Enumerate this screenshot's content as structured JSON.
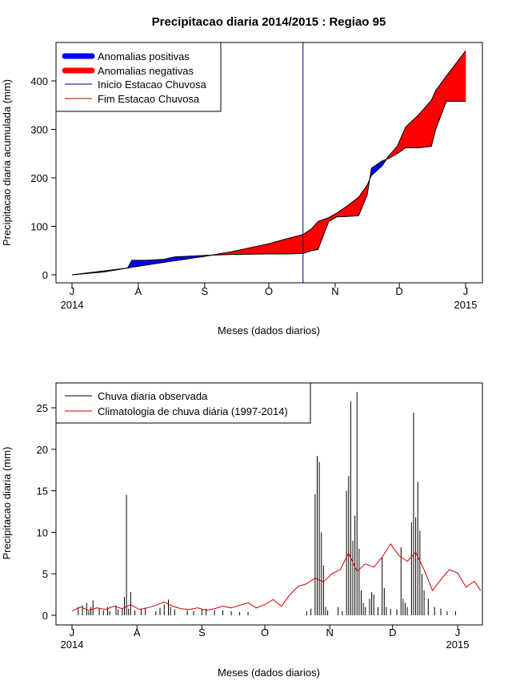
{
  "chart_data": [
    {
      "type": "area",
      "title": "Precipitacao diaria 2014/2015 : Regiao 95",
      "xlabel": "Meses (dados diarios)",
      "ylabel": "Precipitacao diaria acumulada (mm)",
      "ylim": [
        0,
        480
      ],
      "y_ticks": [
        0,
        100,
        200,
        300,
        400
      ],
      "month_ticks": [
        {
          "label": "J",
          "day": 0
        },
        {
          "label": "A",
          "day": 31
        },
        {
          "label": "S",
          "day": 62
        },
        {
          "label": "O",
          "day": 92
        },
        {
          "label": "N",
          "day": 123
        },
        {
          "label": "D",
          "day": 153
        },
        {
          "label": "J",
          "day": 184
        }
      ],
      "year_labels": [
        {
          "label": "2014",
          "day": 0
        },
        {
          "label": "2015",
          "day": 184
        }
      ],
      "x_range_days": [
        0,
        188
      ],
      "onset_day": 108,
      "observed_cumulative": {
        "days": [
          0,
          15,
          26,
          28,
          35,
          43,
          48,
          62,
          75,
          92,
          100,
          108,
          112,
          115,
          120,
          124,
          128,
          134,
          138,
          140,
          145,
          148,
          152,
          156,
          162,
          168,
          170,
          175,
          184
        ],
        "values": [
          0,
          8,
          14,
          30,
          30,
          32,
          37,
          40,
          42,
          43,
          43,
          44,
          50,
          52,
          110,
          120,
          120,
          122,
          165,
          220,
          235,
          240,
          250,
          262,
          262,
          265,
          300,
          358,
          358
        ]
      },
      "climatology_cumulative": {
        "days": [
          0,
          15,
          30,
          45,
          62,
          75,
          92,
          100,
          108,
          112,
          115,
          120,
          124,
          128,
          134,
          138,
          140,
          145,
          148,
          152,
          156,
          162,
          168,
          170,
          175,
          184
        ],
        "values": [
          0,
          6,
          17,
          27,
          38,
          48,
          64,
          74,
          83,
          95,
          110,
          118,
          128,
          140,
          160,
          185,
          205,
          225,
          245,
          265,
          305,
          330,
          360,
          380,
          410,
          462
        ]
      },
      "legend": [
        {
          "label": "Anomalias positivas",
          "color": "#0000ff"
        },
        {
          "label": "Anomalias negativas",
          "color": "#ff0000"
        },
        {
          "label": "Inicio Estacao Chuvosa",
          "color": "#00008b"
        },
        {
          "label": "Fim Estacao Chuvosa",
          "color": "#cc0000"
        }
      ],
      "legend_position": "top-left"
    },
    {
      "type": "bar",
      "title": "",
      "xlabel": "Meses (dados diarios)",
      "ylabel": "Precipitacao diaria (mm)",
      "ylim": [
        0,
        27
      ],
      "y_ticks": [
        0,
        5,
        10,
        15,
        20,
        25
      ],
      "month_ticks": [
        {
          "label": "J",
          "day": 0
        },
        {
          "label": "A",
          "day": 31
        },
        {
          "label": "S",
          "day": 62
        },
        {
          "label": "O",
          "day": 92
        },
        {
          "label": "N",
          "day": 123
        },
        {
          "label": "D",
          "day": 153
        },
        {
          "label": "J",
          "day": 184
        }
      ],
      "year_labels": [
        {
          "label": "2014",
          "day": 0
        },
        {
          "label": "2015",
          "day": 184
        }
      ],
      "x_range_days": [
        0,
        195
      ],
      "observed_daily": [
        {
          "day": 3,
          "value": 1.0
        },
        {
          "day": 5,
          "value": 1.2
        },
        {
          "day": 7,
          "value": 1.5
        },
        {
          "day": 8,
          "value": 0.5
        },
        {
          "day": 9,
          "value": 1.0
        },
        {
          "day": 10,
          "value": 1.8
        },
        {
          "day": 13,
          "value": 0.8
        },
        {
          "day": 15,
          "value": 0.6
        },
        {
          "day": 17,
          "value": 1.0
        },
        {
          "day": 18,
          "value": 0.5
        },
        {
          "day": 21,
          "value": 1.2
        },
        {
          "day": 22,
          "value": 0.7
        },
        {
          "day": 24,
          "value": 0.9
        },
        {
          "day": 25,
          "value": 2.2
        },
        {
          "day": 26,
          "value": 14.5
        },
        {
          "day": 27,
          "value": 0.8
        },
        {
          "day": 28,
          "value": 2.8
        },
        {
          "day": 30,
          "value": 0.6
        },
        {
          "day": 33,
          "value": 0.8
        },
        {
          "day": 35,
          "value": 0.9
        },
        {
          "day": 40,
          "value": 0.5
        },
        {
          "day": 42,
          "value": 0.9
        },
        {
          "day": 44,
          "value": 1.3
        },
        {
          "day": 46,
          "value": 1.9
        },
        {
          "day": 47,
          "value": 1.0
        },
        {
          "day": 49,
          "value": 0.7
        },
        {
          "day": 55,
          "value": 0.6
        },
        {
          "day": 58,
          "value": 0.5
        },
        {
          "day": 62,
          "value": 0.7
        },
        {
          "day": 64,
          "value": 0.8
        },
        {
          "day": 68,
          "value": 0.6
        },
        {
          "day": 72,
          "value": 0.6
        },
        {
          "day": 76,
          "value": 0.5
        },
        {
          "day": 80,
          "value": 0.4
        },
        {
          "day": 84,
          "value": 0.4
        },
        {
          "day": 112,
          "value": 0.5
        },
        {
          "day": 114,
          "value": 0.8
        },
        {
          "day": 116,
          "value": 14.6
        },
        {
          "day": 117,
          "value": 19.2
        },
        {
          "day": 118,
          "value": 18.5
        },
        {
          "day": 119,
          "value": 10.0
        },
        {
          "day": 120,
          "value": 6.0
        },
        {
          "day": 121,
          "value": 1.0
        },
        {
          "day": 122,
          "value": 0.6
        },
        {
          "day": 127,
          "value": 1.0
        },
        {
          "day": 129,
          "value": 0.5
        },
        {
          "day": 131,
          "value": 15.0
        },
        {
          "day": 132,
          "value": 16.8
        },
        {
          "day": 133,
          "value": 25.8
        },
        {
          "day": 134,
          "value": 9.0
        },
        {
          "day": 135,
          "value": 12.0
        },
        {
          "day": 136,
          "value": 26.9
        },
        {
          "day": 137,
          "value": 8.0
        },
        {
          "day": 138,
          "value": 3.0
        },
        {
          "day": 139,
          "value": 1.5
        },
        {
          "day": 140,
          "value": 1.0
        },
        {
          "day": 142,
          "value": 2.0
        },
        {
          "day": 143,
          "value": 2.8
        },
        {
          "day": 144,
          "value": 2.5
        },
        {
          "day": 146,
          "value": 1.0
        },
        {
          "day": 148,
          "value": 7.0
        },
        {
          "day": 149,
          "value": 3.3
        },
        {
          "day": 150,
          "value": 1.0
        },
        {
          "day": 152,
          "value": 0.8
        },
        {
          "day": 155,
          "value": 0.7
        },
        {
          "day": 157,
          "value": 8.2
        },
        {
          "day": 158,
          "value": 2.0
        },
        {
          "day": 159,
          "value": 1.5
        },
        {
          "day": 160,
          "value": 1.0
        },
        {
          "day": 162,
          "value": 11.2
        },
        {
          "day": 163,
          "value": 24.4
        },
        {
          "day": 164,
          "value": 11.8
        },
        {
          "day": 165,
          "value": 16.1
        },
        {
          "day": 166,
          "value": 10.2
        },
        {
          "day": 167,
          "value": 5.0
        },
        {
          "day": 168,
          "value": 3.0
        },
        {
          "day": 170,
          "value": 2.0
        },
        {
          "day": 173,
          "value": 1.0
        },
        {
          "day": 176,
          "value": 0.8
        },
        {
          "day": 179,
          "value": 0.5
        },
        {
          "day": 183,
          "value": 0.5
        }
      ],
      "climatology_daily": {
        "days": [
          0,
          4,
          8,
          12,
          16,
          20,
          24,
          28,
          32,
          36,
          40,
          44,
          48,
          52,
          56,
          60,
          64,
          68,
          72,
          76,
          80,
          84,
          88,
          92,
          96,
          100,
          104,
          108,
          112,
          116,
          120,
          124,
          128,
          132,
          136,
          140,
          144,
          148,
          152,
          156,
          160,
          164,
          168,
          172,
          176,
          180,
          184,
          188,
          192,
          195
        ],
        "values": [
          0.5,
          1.0,
          0.6,
          0.9,
          0.7,
          1.1,
          0.8,
          1.3,
          0.7,
          0.9,
          1.2,
          1.6,
          1.1,
          0.8,
          0.7,
          0.9,
          0.6,
          0.8,
          1.1,
          0.9,
          1.2,
          1.5,
          0.9,
          1.3,
          1.9,
          1.1,
          2.5,
          3.5,
          3.8,
          4.5,
          4.0,
          5.0,
          5.5,
          7.5,
          5.3,
          6.2,
          5.8,
          7.0,
          8.6,
          7.2,
          6.5,
          7.6,
          5.5,
          3.0,
          4.3,
          5.5,
          5.1,
          3.4,
          4.1,
          3.0
        ]
      },
      "legend": [
        {
          "label": "Chuva diaria observada",
          "color": "#000000"
        },
        {
          "label": "Climatologia de chuva diária (1997-2014)",
          "color": "#cc0000"
        }
      ],
      "legend_position": "top-left"
    }
  ]
}
